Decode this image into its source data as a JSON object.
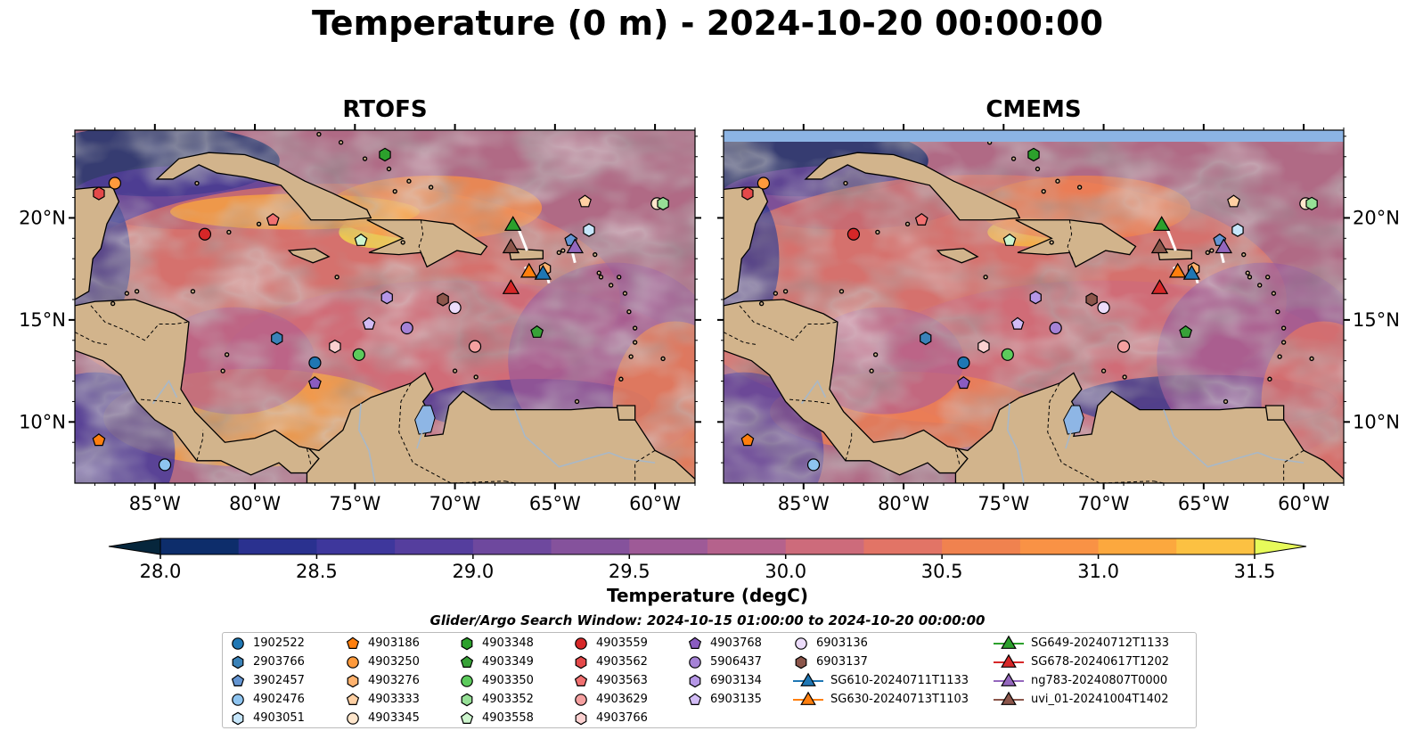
{
  "title": "Temperature (0 m) - 2024-10-20 00:00:00",
  "panels": [
    {
      "id": "rtofs",
      "title": "RTOFS"
    },
    {
      "id": "cmems",
      "title": "CMEMS"
    }
  ],
  "map_extent": {
    "lon": [
      -89,
      -58
    ],
    "lat": [
      7,
      24.3
    ]
  },
  "lon_ticks": [
    {
      "v": -85,
      "label": "85°W"
    },
    {
      "v": -80,
      "label": "80°W"
    },
    {
      "v": -75,
      "label": "75°W"
    },
    {
      "v": -70,
      "label": "70°W"
    },
    {
      "v": -65,
      "label": "65°W"
    },
    {
      "v": -60,
      "label": "60°W"
    }
  ],
  "lat_ticks": [
    {
      "v": 20,
      "label": "20°N"
    },
    {
      "v": 15,
      "label": "15°N"
    },
    {
      "v": 10,
      "label": "10°N"
    }
  ],
  "colorbar": {
    "label": "Temperature (degC)",
    "min": 28.0,
    "max": 31.5,
    "step": 0.25,
    "ticks": [
      "28.0",
      "28.5",
      "29.0",
      "29.5",
      "30.0",
      "30.5",
      "31.0",
      "31.5"
    ],
    "colors": [
      "#06263c",
      "#0d2d6b",
      "#2a318f",
      "#3e379c",
      "#553e9e",
      "#6e489e",
      "#85529c",
      "#9e5a97",
      "#b5628c",
      "#cd6b7b",
      "#e27466",
      "#f0824f",
      "#f99245",
      "#fca83e",
      "#fcc142",
      "#f3e14b",
      "#e7fa5a"
    ]
  },
  "colors": {
    "land": "#d2b48c",
    "ocean_base": "#b06a85",
    "lake": "#8eb6e5",
    "river": "#a8b8c8",
    "cmems_band": "#8cb4e4"
  },
  "legend": {
    "title": "Glider/Argo Search Window: 2024-10-15 01:00:00 to 2024-10-20 00:00:00",
    "items": [
      {
        "id": "1902522",
        "shape": "circle",
        "color": "#1f77b4",
        "lon": -77.0,
        "lat": 12.9
      },
      {
        "id": "2903766",
        "shape": "hexagon",
        "color": "#3a82b8",
        "lon": -78.9,
        "lat": 14.1
      },
      {
        "id": "3902457",
        "shape": "pentagon",
        "color": "#6495d2",
        "lon": -64.2,
        "lat": 18.9
      },
      {
        "id": "4902476",
        "shape": "circle",
        "color": "#8ec4f0",
        "lon": -84.5,
        "lat": 7.9
      },
      {
        "id": "4903051",
        "shape": "hexagon",
        "color": "#c6e6fb",
        "lon": -63.3,
        "lat": 19.4
      },
      {
        "id": "4903186",
        "shape": "pentagon",
        "color": "#ff7f0e",
        "lon": -87.8,
        "lat": 9.1
      },
      {
        "id": "4903250",
        "shape": "circle",
        "color": "#ff9a3c",
        "lon": -87.0,
        "lat": 21.7
      },
      {
        "id": "4903276",
        "shape": "hexagon",
        "color": "#ffb26e",
        "lon": -65.5,
        "lat": 17.5
      },
      {
        "id": "4903333",
        "shape": "pentagon",
        "color": "#ffd0a3",
        "lon": -63.5,
        "lat": 20.8
      },
      {
        "id": "4903345",
        "shape": "circle",
        "color": "#ffe6cc",
        "lon": -59.9,
        "lat": 20.7
      },
      {
        "id": "4903348",
        "shape": "hexagon",
        "color": "#2ca02c",
        "lon": -73.5,
        "lat": 23.1
      },
      {
        "id": "4903349",
        "shape": "pentagon",
        "color": "#38a238",
        "lon": -65.9,
        "lat": 14.4
      },
      {
        "id": "4903350",
        "shape": "circle",
        "color": "#5ccb5c",
        "lon": -74.8,
        "lat": 13.3
      },
      {
        "id": "4903352",
        "shape": "hexagon",
        "color": "#96e096",
        "lon": -59.6,
        "lat": 20.7
      },
      {
        "id": "4903558",
        "shape": "pentagon",
        "color": "#cdf5cd",
        "lon": -74.7,
        "lat": 18.9
      },
      {
        "id": "4903559",
        "shape": "circle",
        "color": "#d62728",
        "lon": -82.5,
        "lat": 19.2
      },
      {
        "id": "4903562",
        "shape": "hexagon",
        "color": "#e4494a",
        "lon": -87.8,
        "lat": 21.2
      },
      {
        "id": "4903563",
        "shape": "pentagon",
        "color": "#f07070",
        "lon": -79.1,
        "lat": 19.9
      },
      {
        "id": "4903629",
        "shape": "circle",
        "color": "#f5a0a0",
        "lon": -69.0,
        "lat": 13.7
      },
      {
        "id": "4903766",
        "shape": "hexagon",
        "color": "#fbd0d0",
        "lon": -76.0,
        "lat": 13.7
      },
      {
        "id": "4903768",
        "shape": "pentagon",
        "color": "#8a5cc0",
        "lon": -77.0,
        "lat": 11.9
      },
      {
        "id": "5906437",
        "shape": "circle",
        "color": "#a582d6",
        "lon": -72.4,
        "lat": 14.6
      },
      {
        "id": "6903134",
        "shape": "hexagon",
        "color": "#b596e6",
        "lon": -73.4,
        "lat": 16.1
      },
      {
        "id": "6903135",
        "shape": "pentagon",
        "color": "#d2bcf5",
        "lon": -74.3,
        "lat": 14.8
      },
      {
        "id": "6903136",
        "shape": "circle",
        "color": "#ecdcfb",
        "lon": -70.0,
        "lat": 15.6
      },
      {
        "id": "6903137",
        "shape": "hexagon",
        "color": "#8c564b",
        "lon": -70.6,
        "lat": 16.0
      },
      {
        "id": "SG610-20240711T1133",
        "shape": "triangle",
        "color": "#1f77b4",
        "lon": -65.6,
        "lat": 17.3
      },
      {
        "id": "SG630-20240713T1103",
        "shape": "triangle",
        "color": "#ff7f0e",
        "lon": -66.3,
        "lat": 17.4
      },
      {
        "id": "SG649-20240712T1133",
        "shape": "triangle",
        "color": "#2ca02c",
        "lon": -67.1,
        "lat": 19.7
      },
      {
        "id": "SG678-20240617T1202",
        "shape": "triangle",
        "color": "#d62728",
        "lon": -67.2,
        "lat": 16.6
      },
      {
        "id": "ng783-20240807T0000",
        "shape": "triangle",
        "color": "#9467bd",
        "lon": -64.0,
        "lat": 18.6
      },
      {
        "id": "uvi_01-20241004T1402",
        "shape": "triangle",
        "color": "#8c564b",
        "lon": -67.2,
        "lat": 18.6
      }
    ]
  }
}
